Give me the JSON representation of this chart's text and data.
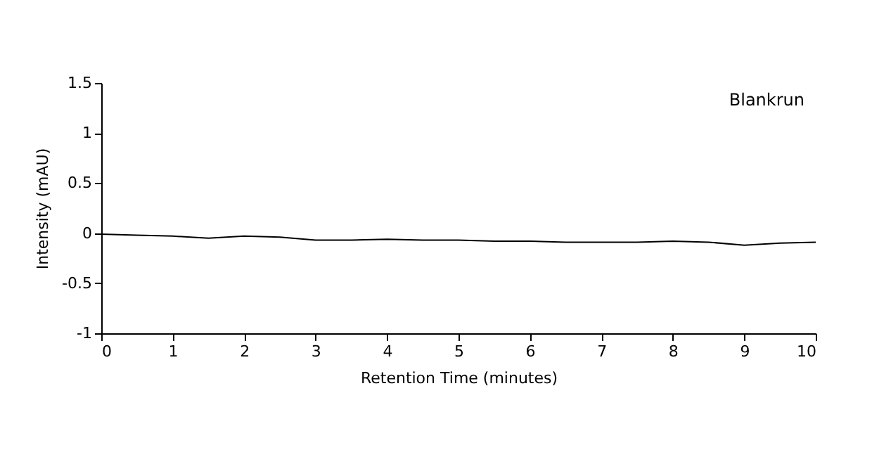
{
  "chart_data": {
    "type": "line",
    "xlabel": "Retention Time (minutes)",
    "ylabel": "Intensity (mAU)",
    "annotations": [
      "Blankrun"
    ],
    "x": [
      0,
      0.5,
      1,
      1.5,
      2,
      2.5,
      3,
      3.5,
      4,
      4.5,
      5,
      5.5,
      6,
      6.5,
      7,
      7.5,
      8,
      8.5,
      9,
      9.5,
      10
    ],
    "series": [
      {
        "color": "#000000",
        "values": [
          -0.01,
          -0.02,
          -0.03,
          -0.05,
          -0.03,
          -0.04,
          -0.07,
          -0.07,
          -0.06,
          -0.07,
          -0.07,
          -0.08,
          -0.08,
          -0.09,
          -0.09,
          -0.09,
          -0.08,
          -0.09,
          -0.12,
          -0.1,
          -0.09
        ]
      }
    ],
    "xlim": [
      0,
      10
    ],
    "xticks": [
      0,
      1,
      2,
      3,
      4,
      5,
      6,
      7,
      8,
      9,
      10
    ],
    "ylim": [
      -1,
      1.5
    ],
    "yticks": [
      -1,
      -0.5,
      0,
      0.5,
      1,
      1.5
    ],
    "grid": false,
    "marker": "none",
    "line_style": "solid"
  }
}
